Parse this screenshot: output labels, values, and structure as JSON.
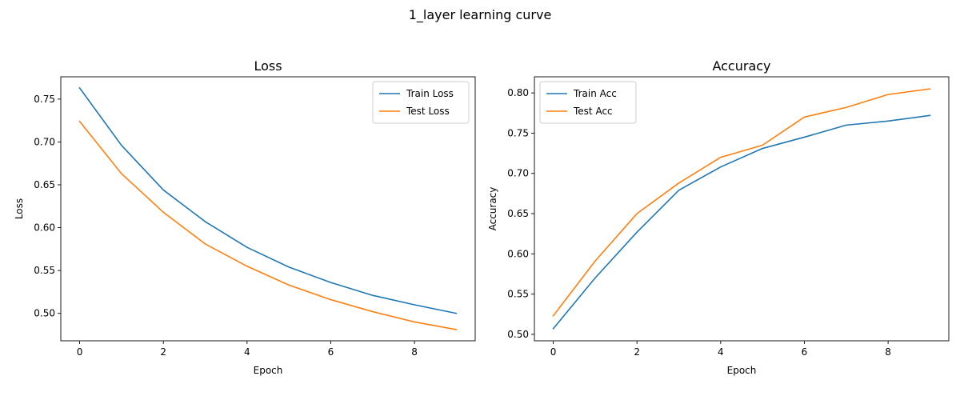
{
  "figure": {
    "suptitle": "1_layer learning curve"
  },
  "chart_data": [
    {
      "type": "line",
      "title": "Loss",
      "xlabel": "Epoch",
      "ylabel": "Loss",
      "xlim": [
        -0.45,
        9.45
      ],
      "ylim": [
        0.468,
        0.776
      ],
      "xticks": [
        0,
        2,
        4,
        6,
        8
      ],
      "yticks": [
        0.5,
        0.55,
        0.6,
        0.65,
        0.7,
        0.75
      ],
      "grid": false,
      "legend": "upper right",
      "x": [
        0,
        1,
        2,
        3,
        4,
        5,
        6,
        7,
        8,
        9
      ],
      "series": [
        {
          "name": "Train Loss",
          "color": "#1f77b4",
          "values": [
            0.763,
            0.696,
            0.644,
            0.607,
            0.577,
            0.554,
            0.536,
            0.521,
            0.51,
            0.5
          ]
        },
        {
          "name": "Test Loss",
          "color": "#ff7f0e",
          "values": [
            0.724,
            0.663,
            0.618,
            0.581,
            0.555,
            0.533,
            0.516,
            0.502,
            0.49,
            0.481
          ]
        }
      ]
    },
    {
      "type": "line",
      "title": "Accuracy",
      "xlabel": "Epoch",
      "ylabel": "Accuracy",
      "xlim": [
        -0.45,
        9.45
      ],
      "ylim": [
        0.492,
        0.82
      ],
      "xticks": [
        0,
        2,
        4,
        6,
        8
      ],
      "yticks": [
        0.5,
        0.55,
        0.6,
        0.65,
        0.7,
        0.75,
        0.8
      ],
      "grid": false,
      "legend": "upper left",
      "x": [
        0,
        1,
        2,
        3,
        4,
        5,
        6,
        7,
        8,
        9
      ],
      "series": [
        {
          "name": "Train Acc",
          "color": "#1f77b4",
          "values": [
            0.507,
            0.57,
            0.627,
            0.679,
            0.708,
            0.731,
            0.745,
            0.76,
            0.765,
            0.772
          ]
        },
        {
          "name": "Test Acc",
          "color": "#ff7f0e",
          "values": [
            0.523,
            0.591,
            0.65,
            0.688,
            0.72,
            0.735,
            0.77,
            0.782,
            0.798,
            0.805
          ]
        }
      ]
    }
  ]
}
